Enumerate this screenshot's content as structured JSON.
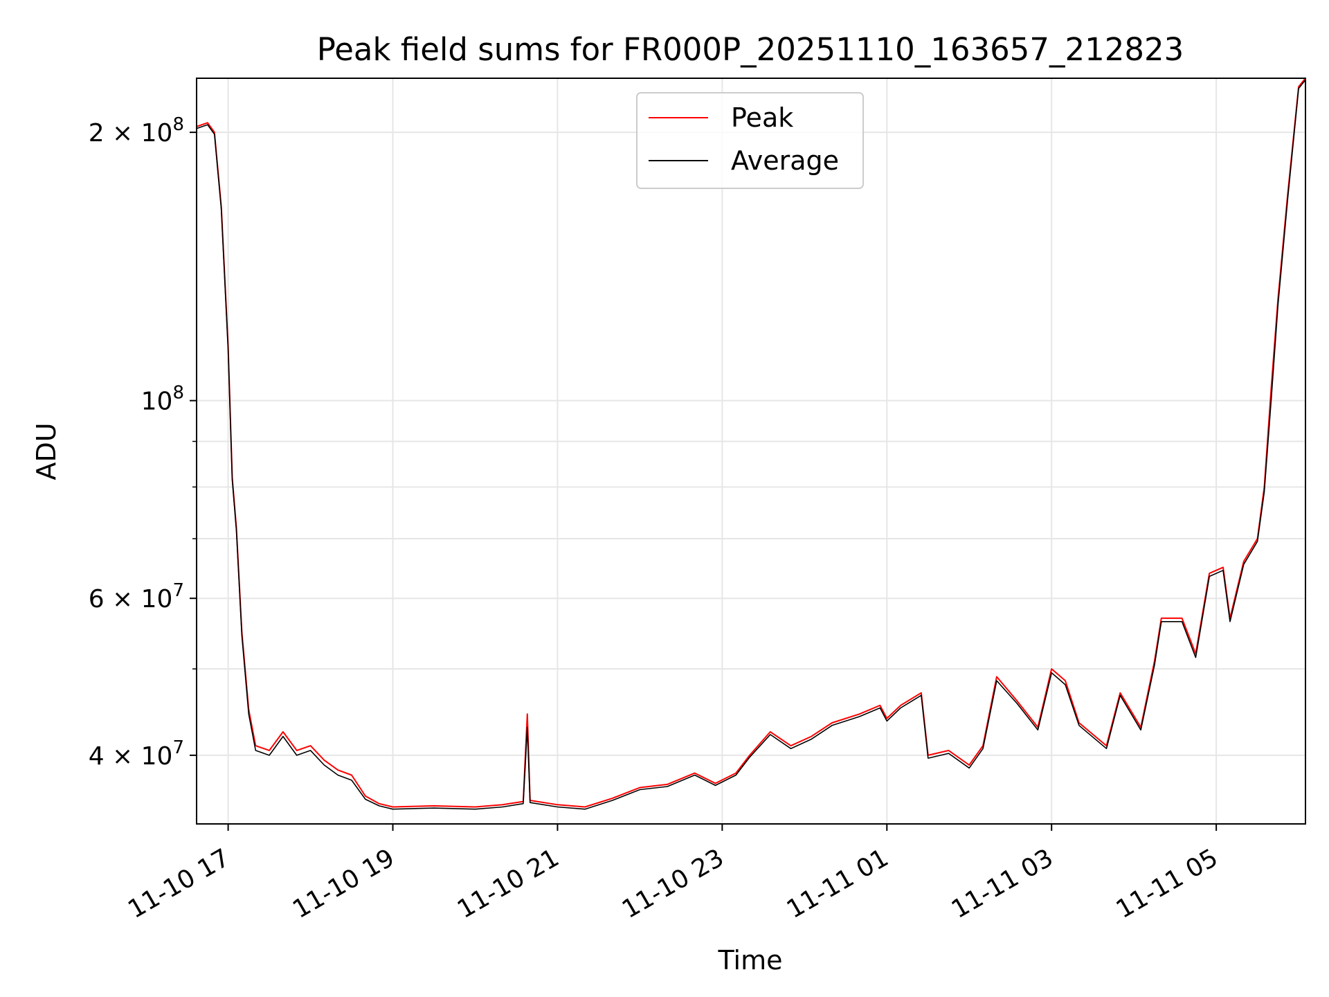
{
  "chart_data": {
    "type": "line",
    "title": "Peak field sums for FR000P_20251110_163657_212823",
    "xlabel": "Time",
    "ylabel": "ADU",
    "yscale": "log",
    "xlim": [
      "2025-11-10 16:37",
      "2025-11-11 06:05"
    ],
    "ylim": [
      33500000,
      230000000
    ],
    "grid": true,
    "legend_position": "top-center",
    "x_ticks": [
      {
        "t": "2025-11-10 17:00",
        "label": "11-10 17"
      },
      {
        "t": "2025-11-10 19:00",
        "label": "11-10 19"
      },
      {
        "t": "2025-11-10 21:00",
        "label": "11-10 21"
      },
      {
        "t": "2025-11-10 23:00",
        "label": "11-10 23"
      },
      {
        "t": "2025-11-11 01:00",
        "label": "11-11 01"
      },
      {
        "t": "2025-11-11 03:00",
        "label": "11-11 03"
      },
      {
        "t": "2025-11-11 05:00",
        "label": "11-11 05"
      }
    ],
    "y_major_ticks": [
      {
        "value": 40000000,
        "mantissa": "4",
        "exponent": "7"
      },
      {
        "value": 60000000,
        "mantissa": "6",
        "exponent": "7"
      },
      {
        "value": 100000000,
        "mantissa": "",
        "exponent": "8"
      },
      {
        "value": 200000000,
        "mantissa": "2",
        "exponent": "8"
      }
    ],
    "y_minor_ticks": [
      50000000,
      70000000,
      80000000,
      90000000
    ],
    "series": [
      {
        "name": "Peak",
        "color": "#ff0000",
        "points": [
          [
            "2025-11-10 16:37",
            203000000
          ],
          [
            "2025-11-10 16:45",
            205000000
          ],
          [
            "2025-11-10 16:50",
            200000000
          ],
          [
            "2025-11-10 16:55",
            165000000
          ],
          [
            "2025-11-10 17:00",
            115000000
          ],
          [
            "2025-11-10 17:03",
            82000000
          ],
          [
            "2025-11-10 17:06",
            72000000
          ],
          [
            "2025-11-10 17:10",
            55000000
          ],
          [
            "2025-11-10 17:15",
            45000000
          ],
          [
            "2025-11-10 17:20",
            41000000
          ],
          [
            "2025-11-10 17:30",
            40500000
          ],
          [
            "2025-11-10 17:40",
            42500000
          ],
          [
            "2025-11-10 17:50",
            40500000
          ],
          [
            "2025-11-10 18:00",
            41000000
          ],
          [
            "2025-11-10 18:10",
            39500000
          ],
          [
            "2025-11-10 18:20",
            38500000
          ],
          [
            "2025-11-10 18:30",
            38000000
          ],
          [
            "2025-11-10 18:40",
            36000000
          ],
          [
            "2025-11-10 18:50",
            35300000
          ],
          [
            "2025-11-10 19:00",
            35000000
          ],
          [
            "2025-11-10 19:30",
            35100000
          ],
          [
            "2025-11-10 20:00",
            35000000
          ],
          [
            "2025-11-10 20:20",
            35200000
          ],
          [
            "2025-11-10 20:35",
            35500000
          ],
          [
            "2025-11-10 20:38",
            44500000
          ],
          [
            "2025-11-10 20:40",
            35600000
          ],
          [
            "2025-11-10 21:00",
            35200000
          ],
          [
            "2025-11-10 21:20",
            35000000
          ],
          [
            "2025-11-10 21:40",
            35800000
          ],
          [
            "2025-11-10 22:00",
            36800000
          ],
          [
            "2025-11-10 22:20",
            37100000
          ],
          [
            "2025-11-10 22:40",
            38200000
          ],
          [
            "2025-11-10 22:55",
            37200000
          ],
          [
            "2025-11-10 23:10",
            38200000
          ],
          [
            "2025-11-10 23:20",
            40000000
          ],
          [
            "2025-11-10 23:35",
            42500000
          ],
          [
            "2025-11-10 23:50",
            41000000
          ],
          [
            "2025-11-11 00:05",
            42000000
          ],
          [
            "2025-11-11 00:20",
            43500000
          ],
          [
            "2025-11-11 00:40",
            44500000
          ],
          [
            "2025-11-11 00:55",
            45500000
          ],
          [
            "2025-11-11 01:00",
            44000000
          ],
          [
            "2025-11-11 01:10",
            45500000
          ],
          [
            "2025-11-11 01:25",
            47000000
          ],
          [
            "2025-11-11 01:30",
            40000000
          ],
          [
            "2025-11-11 01:45",
            40500000
          ],
          [
            "2025-11-11 02:00",
            39000000
          ],
          [
            "2025-11-11 02:10",
            41000000
          ],
          [
            "2025-11-11 02:20",
            49000000
          ],
          [
            "2025-11-11 02:35",
            46000000
          ],
          [
            "2025-11-11 02:50",
            43000000
          ],
          [
            "2025-11-11 03:00",
            50000000
          ],
          [
            "2025-11-11 03:10",
            48500000
          ],
          [
            "2025-11-11 03:20",
            43500000
          ],
          [
            "2025-11-11 03:40",
            41000000
          ],
          [
            "2025-11-11 03:50",
            47000000
          ],
          [
            "2025-11-11 04:05",
            43000000
          ],
          [
            "2025-11-11 04:15",
            51000000
          ],
          [
            "2025-11-11 04:20",
            57000000
          ],
          [
            "2025-11-11 04:35",
            57000000
          ],
          [
            "2025-11-11 04:45",
            52000000
          ],
          [
            "2025-11-11 04:55",
            64000000
          ],
          [
            "2025-11-11 05:05",
            65000000
          ],
          [
            "2025-11-11 05:10",
            57000000
          ],
          [
            "2025-11-11 05:20",
            66000000
          ],
          [
            "2025-11-11 05:30",
            70000000
          ],
          [
            "2025-11-11 05:35",
            80000000
          ],
          [
            "2025-11-11 05:40",
            103000000
          ],
          [
            "2025-11-11 05:45",
            130000000
          ],
          [
            "2025-11-11 05:52",
            170000000
          ],
          [
            "2025-11-11 06:00",
            225000000
          ],
          [
            "2025-11-11 06:05",
            230000000
          ]
        ]
      },
      {
        "name": "Average",
        "color": "#000000",
        "points": [
          [
            "2025-11-10 16:37",
            202000000
          ],
          [
            "2025-11-10 16:45",
            204000000
          ],
          [
            "2025-11-10 16:50",
            199000000
          ],
          [
            "2025-11-10 16:55",
            164000000
          ],
          [
            "2025-11-10 17:00",
            114000000
          ],
          [
            "2025-11-10 17:03",
            81500000
          ],
          [
            "2025-11-10 17:06",
            71500000
          ],
          [
            "2025-11-10 17:10",
            54500000
          ],
          [
            "2025-11-10 17:15",
            44500000
          ],
          [
            "2025-11-10 17:20",
            40500000
          ],
          [
            "2025-11-10 17:30",
            40000000
          ],
          [
            "2025-11-10 17:40",
            42000000
          ],
          [
            "2025-11-10 17:50",
            40000000
          ],
          [
            "2025-11-10 18:00",
            40500000
          ],
          [
            "2025-11-10 18:10",
            39000000
          ],
          [
            "2025-11-10 18:20",
            38000000
          ],
          [
            "2025-11-10 18:30",
            37500000
          ],
          [
            "2025-11-10 18:40",
            35700000
          ],
          [
            "2025-11-10 18:50",
            35100000
          ],
          [
            "2025-11-10 19:00",
            34800000
          ],
          [
            "2025-11-10 19:30",
            34900000
          ],
          [
            "2025-11-10 20:00",
            34800000
          ],
          [
            "2025-11-10 20:20",
            35000000
          ],
          [
            "2025-11-10 20:35",
            35300000
          ],
          [
            "2025-11-10 20:38",
            43000000
          ],
          [
            "2025-11-10 20:40",
            35400000
          ],
          [
            "2025-11-10 21:00",
            35000000
          ],
          [
            "2025-11-10 21:20",
            34800000
          ],
          [
            "2025-11-10 21:40",
            35600000
          ],
          [
            "2025-11-10 22:00",
            36600000
          ],
          [
            "2025-11-10 22:20",
            36900000
          ],
          [
            "2025-11-10 22:40",
            38000000
          ],
          [
            "2025-11-10 22:55",
            37000000
          ],
          [
            "2025-11-10 23:10",
            38000000
          ],
          [
            "2025-11-10 23:20",
            39800000
          ],
          [
            "2025-11-10 23:35",
            42200000
          ],
          [
            "2025-11-10 23:50",
            40700000
          ],
          [
            "2025-11-11 00:05",
            41700000
          ],
          [
            "2025-11-11 00:20",
            43200000
          ],
          [
            "2025-11-11 00:40",
            44200000
          ],
          [
            "2025-11-11 00:55",
            45200000
          ],
          [
            "2025-11-11 01:00",
            43700000
          ],
          [
            "2025-11-11 01:10",
            45200000
          ],
          [
            "2025-11-11 01:25",
            46700000
          ],
          [
            "2025-11-11 01:30",
            39700000
          ],
          [
            "2025-11-11 01:45",
            40200000
          ],
          [
            "2025-11-11 02:00",
            38700000
          ],
          [
            "2025-11-11 02:10",
            40700000
          ],
          [
            "2025-11-11 02:20",
            48500000
          ],
          [
            "2025-11-11 02:35",
            45700000
          ],
          [
            "2025-11-11 02:50",
            42700000
          ],
          [
            "2025-11-11 03:00",
            49500000
          ],
          [
            "2025-11-11 03:10",
            48000000
          ],
          [
            "2025-11-11 03:20",
            43200000
          ],
          [
            "2025-11-11 03:40",
            40700000
          ],
          [
            "2025-11-11 03:50",
            46700000
          ],
          [
            "2025-11-11 04:05",
            42700000
          ],
          [
            "2025-11-11 04:15",
            50500000
          ],
          [
            "2025-11-11 04:20",
            56500000
          ],
          [
            "2025-11-11 04:35",
            56500000
          ],
          [
            "2025-11-11 04:45",
            51500000
          ],
          [
            "2025-11-11 04:55",
            63500000
          ],
          [
            "2025-11-11 05:05",
            64500000
          ],
          [
            "2025-11-11 05:10",
            56500000
          ],
          [
            "2025-11-11 05:20",
            65500000
          ],
          [
            "2025-11-11 05:30",
            69500000
          ],
          [
            "2025-11-11 05:35",
            79000000
          ],
          [
            "2025-11-11 05:40",
            100000000
          ],
          [
            "2025-11-11 05:45",
            128000000
          ],
          [
            "2025-11-11 05:52",
            168000000
          ],
          [
            "2025-11-11 06:00",
            224000000
          ],
          [
            "2025-11-11 06:05",
            229000000
          ]
        ]
      }
    ]
  }
}
